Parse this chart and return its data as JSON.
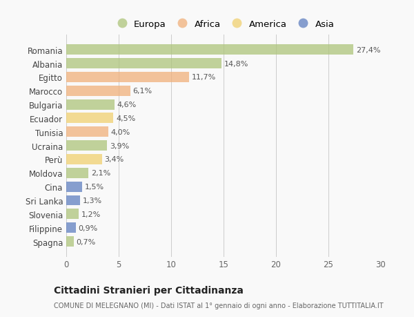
{
  "countries": [
    "Romania",
    "Albania",
    "Egitto",
    "Marocco",
    "Bulgaria",
    "Ecuador",
    "Tunisia",
    "Ucraina",
    "Perù",
    "Moldova",
    "Cina",
    "Sri Lanka",
    "Slovenia",
    "Filippine",
    "Spagna"
  ],
  "values": [
    27.4,
    14.8,
    11.7,
    6.1,
    4.6,
    4.5,
    4.0,
    3.9,
    3.4,
    2.1,
    1.5,
    1.3,
    1.2,
    0.9,
    0.7
  ],
  "labels": [
    "27,4%",
    "14,8%",
    "11,7%",
    "6,1%",
    "4,6%",
    "4,5%",
    "4,0%",
    "3,9%",
    "3,4%",
    "2,1%",
    "1,5%",
    "1,3%",
    "1,2%",
    "0,9%",
    "0,7%"
  ],
  "continent": [
    "Europa",
    "Europa",
    "Africa",
    "Africa",
    "Europa",
    "America",
    "Africa",
    "Europa",
    "America",
    "Europa",
    "Asia",
    "Asia",
    "Europa",
    "Asia",
    "Europa"
  ],
  "colors": {
    "Europa": "#adc47a",
    "Africa": "#f0b07a",
    "America": "#f0d070",
    "Asia": "#6080c0"
  },
  "legend_order": [
    "Europa",
    "Africa",
    "America",
    "Asia"
  ],
  "title": "Cittadini Stranieri per Cittadinanza",
  "subtitle": "COMUNE DI MELEGNANO (MI) - Dati ISTAT al 1° gennaio di ogni anno - Elaborazione TUTTITALIA.IT",
  "xlim": [
    0,
    30
  ],
  "xticks": [
    0,
    5,
    10,
    15,
    20,
    25,
    30
  ],
  "background_color": "#f9f9f9",
  "bar_alpha": 0.75,
  "figsize": [
    6.0,
    4.6
  ],
  "dpi": 100
}
